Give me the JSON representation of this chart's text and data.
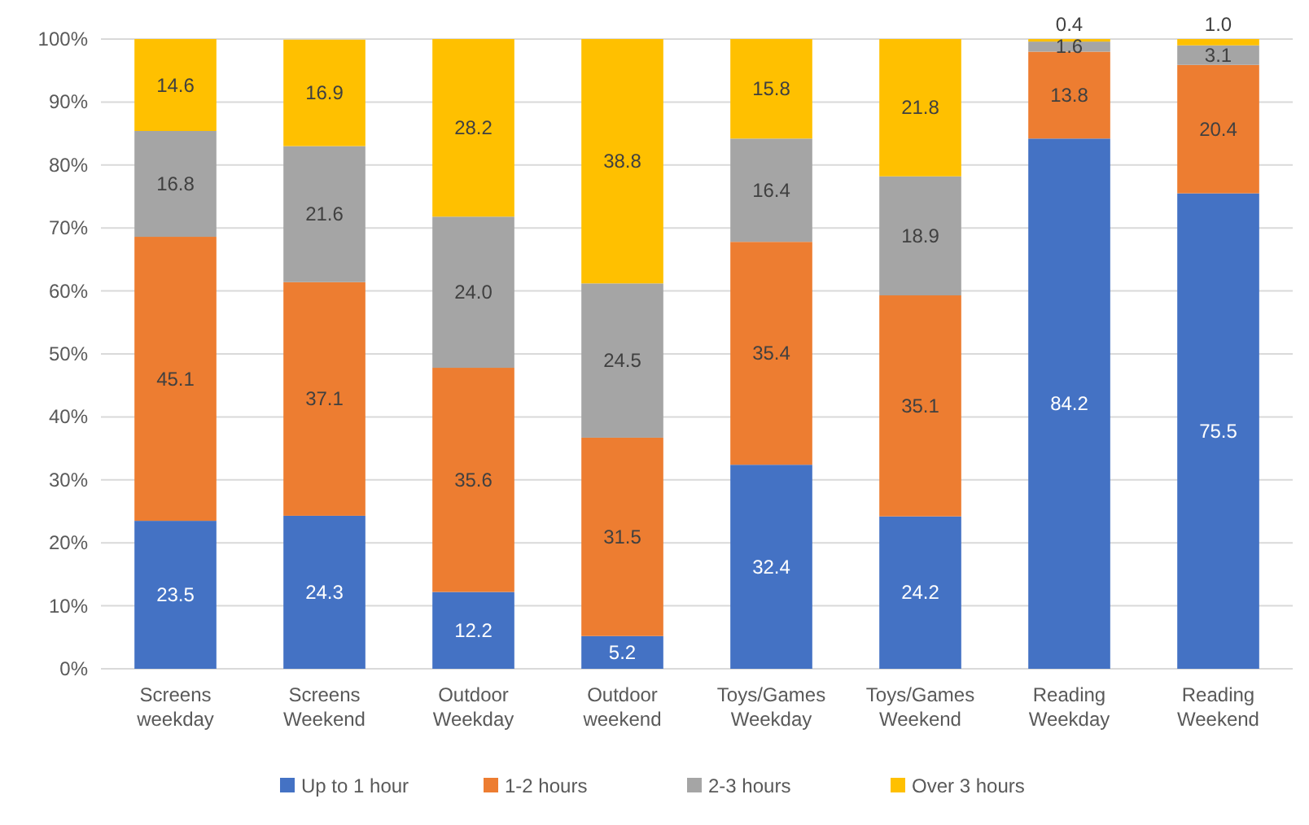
{
  "chart_data": {
    "type": "bar",
    "stacked": true,
    "categories": [
      "Screens weekday",
      "Screens Weekend",
      "Outdoor Weekday",
      "Outdoor weekend",
      "Toys/Games Weekday",
      "Toys/Games Weekend",
      "Reading Weekday",
      "Reading Weekend"
    ],
    "series": [
      {
        "name": "Up to 1 hour",
        "color": "#4472c4",
        "values": [
          23.5,
          24.3,
          12.2,
          5.2,
          32.4,
          24.2,
          84.2,
          75.5
        ],
        "value_labels": [
          "23.5",
          "24.3",
          "12.2",
          "5.2",
          "32.4",
          "24.2",
          "84.2",
          "75.5"
        ]
      },
      {
        "name": "1-2 hours",
        "color": "#ed7d31",
        "values": [
          45.1,
          37.1,
          35.6,
          31.5,
          35.4,
          35.1,
          13.8,
          20.4
        ],
        "value_labels": [
          "45.1",
          "37.1",
          "35.6",
          "31.5",
          "35.4",
          "35.1",
          "13.8",
          "20.4"
        ]
      },
      {
        "name": "2-3 hours",
        "color": "#a5a5a5",
        "values": [
          16.8,
          21.6,
          24.0,
          24.5,
          16.4,
          18.9,
          1.6,
          3.1
        ],
        "value_labels": [
          "16.8",
          "21.6",
          "24.0",
          "24.5",
          "16.4",
          "18.9",
          "1.6",
          "3.1"
        ]
      },
      {
        "name": "Over 3 hours",
        "color": "#ffc000",
        "values": [
          14.6,
          16.9,
          28.2,
          38.8,
          15.8,
          21.8,
          0.4,
          1.0
        ],
        "value_labels": [
          "14.6",
          "16.9",
          "28.2",
          "38.8",
          "15.8",
          "21.8",
          "0.4",
          "1.0"
        ]
      }
    ],
    "ylim": [
      0,
      100
    ],
    "yticks": [
      {
        "value": 0,
        "label": "0%"
      },
      {
        "value": 10,
        "label": "10%"
      },
      {
        "value": 20,
        "label": "20%"
      },
      {
        "value": 30,
        "label": "30%"
      },
      {
        "value": 40,
        "label": "40%"
      },
      {
        "value": 50,
        "label": "50%"
      },
      {
        "value": 60,
        "label": "60%"
      },
      {
        "value": 70,
        "label": "70%"
      },
      {
        "value": 80,
        "label": "80%"
      },
      {
        "value": 90,
        "label": "90%"
      },
      {
        "value": 100,
        "label": "100%"
      }
    ],
    "grid": "y",
    "legend": "bottom"
  }
}
